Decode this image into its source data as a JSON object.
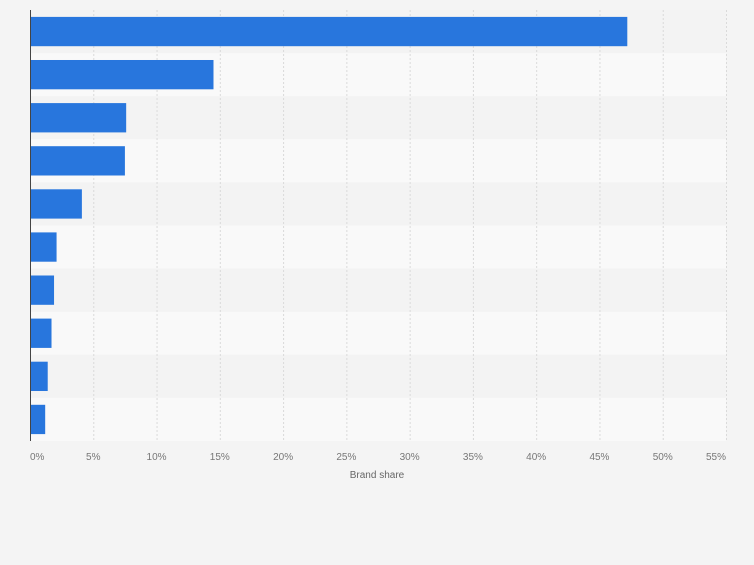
{
  "chart_data": {
    "type": "bar",
    "orientation": "horizontal",
    "categories": [
      "",
      "",
      "",
      "",
      "",
      "",
      "",
      "",
      "",
      ""
    ],
    "values": [
      47.2,
      14.5,
      7.6,
      7.5,
      4.1,
      2.1,
      1.9,
      1.7,
      1.4,
      1.2
    ],
    "xlabel": "Brand share",
    "ylabel": "",
    "xlim": [
      0,
      55
    ],
    "x_ticks": [
      "0%",
      "5%",
      "10%",
      "15%",
      "20%",
      "25%",
      "30%",
      "35%",
      "40%",
      "45%",
      "50%",
      "55%"
    ],
    "grid": true,
    "legend": "none",
    "colors": {
      "bar": "#2876dd",
      "band_dark": "#f3f3f3",
      "band_light": "#f9f9f9",
      "grid": "#dadada",
      "axis": "#444444",
      "tick_text": "#777777",
      "label_text": "#666666",
      "page_bg": "#f4f4f4"
    }
  }
}
